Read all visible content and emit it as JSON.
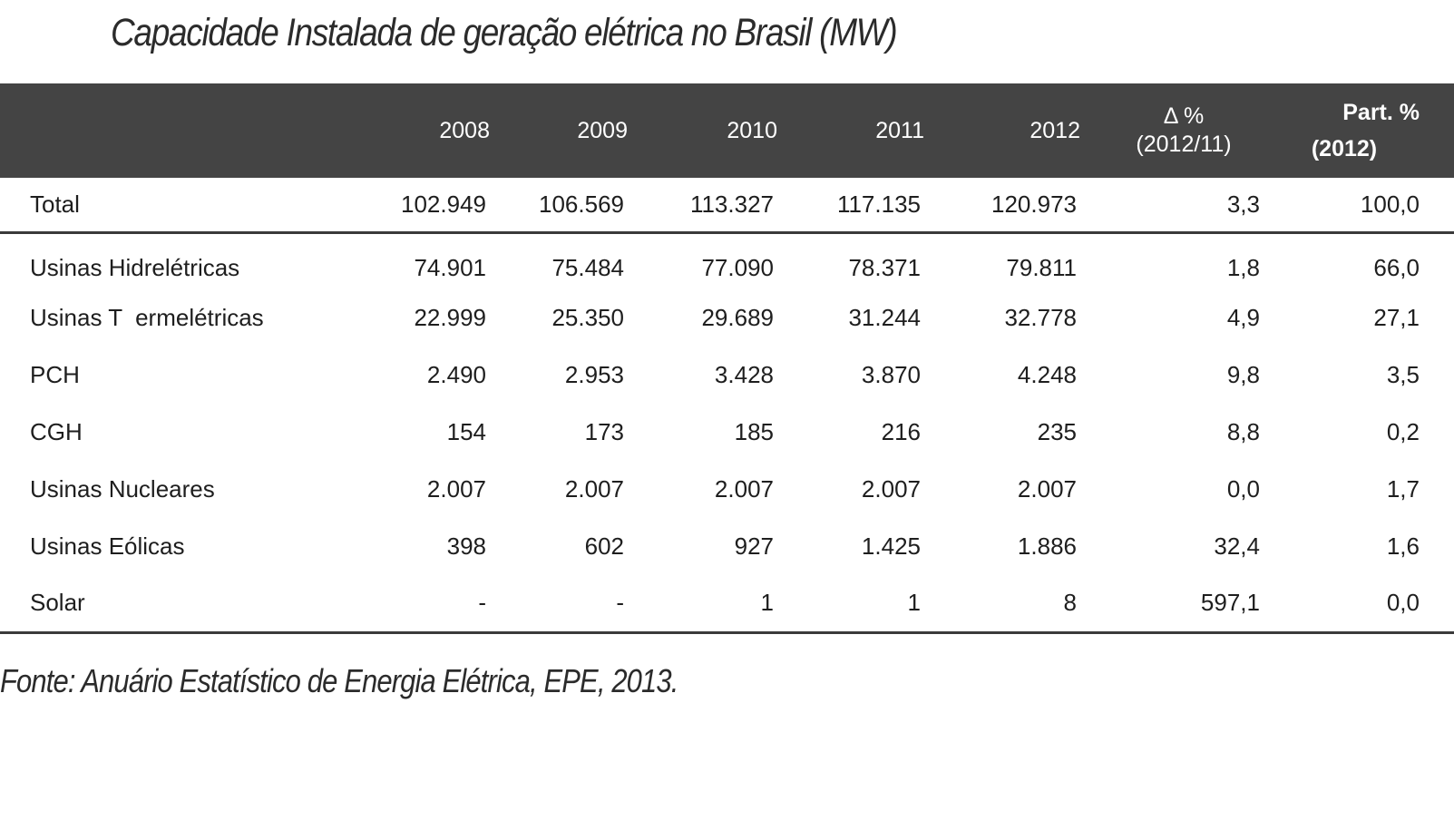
{
  "title": "Capacidade Instalada de geração elétrica no Brasil (MW)",
  "table": {
    "headers": {
      "label": "",
      "years": [
        "2008",
        "2009",
        "2010",
        "2011",
        "2012"
      ],
      "delta_line1": "Δ %",
      "delta_line2": "(2012/11)",
      "part_line1": "Part. %",
      "part_line2": "(2012)"
    },
    "total": {
      "label": "Total",
      "values": [
        "102.949",
        "106.569",
        "113.327",
        "117.135",
        "120.973"
      ],
      "delta": "3,3",
      "part": "100,0"
    },
    "rows": [
      {
        "label": "Usinas Hidrelétricas",
        "values": [
          "74.901",
          "75.484",
          "77.090",
          "78.371",
          "79.811"
        ],
        "delta": "1,8",
        "part": "66,0"
      },
      {
        "label": "Usinas T  ermelétricas",
        "values": [
          "22.999",
          "25.350",
          "29.689",
          "31.244",
          "32.778"
        ],
        "delta": "4,9",
        "part": "27,1"
      },
      {
        "label": "PCH",
        "values": [
          "2.490",
          "2.953",
          "3.428",
          "3.870",
          "4.248"
        ],
        "delta": "9,8",
        "part": "3,5"
      },
      {
        "label": "CGH",
        "values": [
          "154",
          "173",
          "185",
          "216",
          "235"
        ],
        "delta": "8,8",
        "part": "0,2"
      },
      {
        "label": "Usinas Nucleares",
        "values": [
          "2.007",
          "2.007",
          "2.007",
          "2.007",
          "2.007"
        ],
        "delta": "0,0",
        "part": "1,7"
      },
      {
        "label": "Usinas Eólicas",
        "values": [
          "398",
          "602",
          "927",
          "1.425",
          "1.886"
        ],
        "delta": "32,4",
        "part": "1,6"
      },
      {
        "label": "Solar",
        "values": [
          "-",
          "-",
          "1",
          "1",
          "8"
        ],
        "delta": "597,1",
        "part": "0,0"
      }
    ]
  },
  "source": "Fonte:  Anuário Estatístico de Energia Elétrica, EPE, 2013."
}
